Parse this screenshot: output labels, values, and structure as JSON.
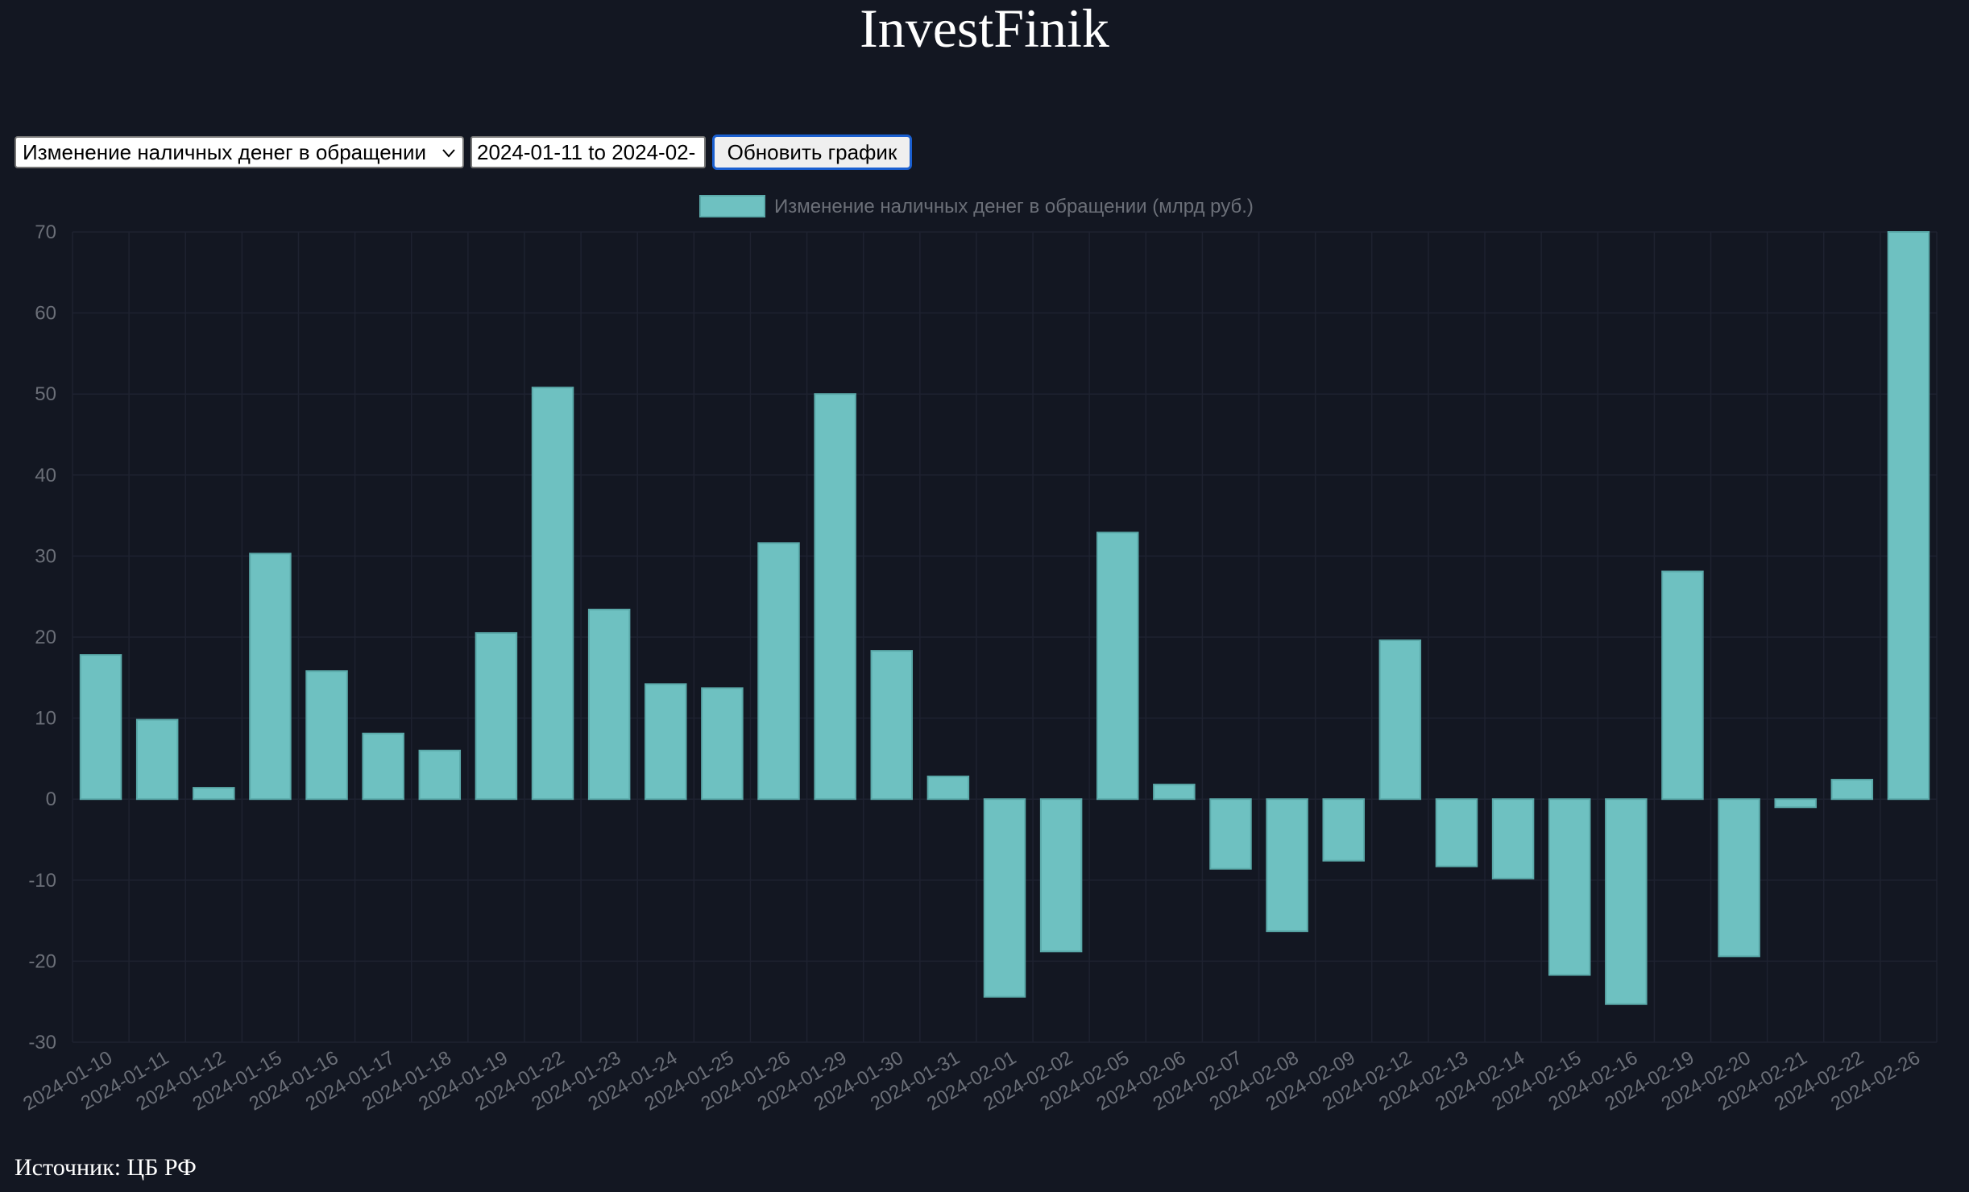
{
  "header": {
    "title": "InvestFinik"
  },
  "controls": {
    "metric_select_value": "Изменение наличных денег в обращении",
    "date_range_value": "2024-01-11 to 2024-02-",
    "update_button_label": "Обновить график"
  },
  "footer": {
    "source": "Источник: ЦБ РФ"
  },
  "colors": {
    "background": "#131722",
    "bar_fill": "#6ec1c1",
    "bar_border": "#5aa9a9",
    "grid": "#1e2230",
    "tick_text": "#6b6f78",
    "legend_text": "#6b6f78"
  },
  "chart_data": {
    "type": "bar",
    "legend": "Изменение наличных денег в обращении (млрд руб.)",
    "legend_position": "top-center",
    "categories": [
      "2024-01-10",
      "2024-01-11",
      "2024-01-12",
      "2024-01-15",
      "2024-01-16",
      "2024-01-17",
      "2024-01-18",
      "2024-01-19",
      "2024-01-22",
      "2024-01-23",
      "2024-01-24",
      "2024-01-25",
      "2024-01-26",
      "2024-01-29",
      "2024-01-30",
      "2024-01-31",
      "2024-02-01",
      "2024-02-02",
      "2024-02-05",
      "2024-02-06",
      "2024-02-07",
      "2024-02-08",
      "2024-02-09",
      "2024-02-12",
      "2024-02-13",
      "2024-02-14",
      "2024-02-15",
      "2024-02-16",
      "2024-02-19",
      "2024-02-20",
      "2024-02-21",
      "2024-02-22",
      "2024-02-26"
    ],
    "values": [
      17.8,
      9.8,
      1.4,
      30.3,
      15.8,
      8.1,
      6.0,
      20.5,
      50.8,
      23.4,
      14.2,
      13.7,
      31.6,
      50.0,
      18.3,
      2.8,
      -24.4,
      -18.8,
      32.9,
      1.8,
      -8.6,
      -16.3,
      -7.6,
      19.6,
      -8.3,
      -9.8,
      -21.7,
      -25.3,
      28.1,
      -19.4,
      -1.0,
      2.4,
      70.0
    ],
    "ylim": [
      -30,
      70
    ],
    "yticks": [
      70,
      60,
      50,
      40,
      30,
      20,
      10,
      0,
      -10,
      -20,
      -30
    ],
    "xlabel": "",
    "ylabel": "",
    "grid": true
  }
}
